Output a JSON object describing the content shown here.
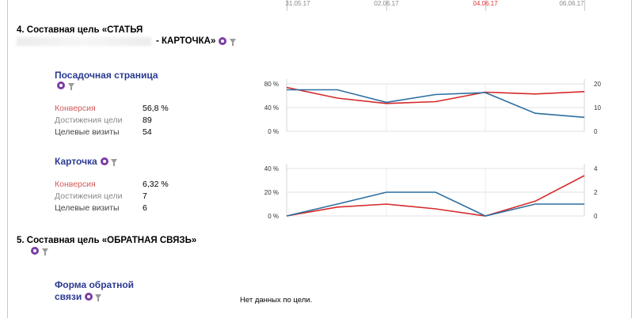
{
  "dates": [
    {
      "label": "31.05.17",
      "red": false
    },
    {
      "label": "02.06.17",
      "red": false
    },
    {
      "label": "04.06.17",
      "red": true
    },
    {
      "label": "06.06.17",
      "red": false
    }
  ],
  "goals": [
    {
      "title_line1": "4. Составная цель «СТАТЬЯ",
      "title_line2": "- КАРТОЧКА»",
      "subgoals": [
        {
          "name": "Посадочная страница",
          "metrics": [
            {
              "label": "Конверсия",
              "value": "56,8 %"
            },
            {
              "label": "Достижения цели",
              "value": "89"
            },
            {
              "label": "Целевые визиты",
              "value": "54"
            }
          ],
          "chart_data": {
            "type": "line",
            "left_ticks": [
              "80 %",
              "40 %",
              "0 %"
            ],
            "right_ticks": [
              "20",
              "10",
              "0"
            ],
            "left_lim": [
              0,
              80
            ],
            "right_lim": [
              0,
              20
            ],
            "series": [
              {
                "color": "#d62a2a",
                "axis": "left",
                "values": [
                  74,
                  56,
                  47,
                  50,
                  66,
                  63,
                  67
                ]
              },
              {
                "color": "#2d6fa0",
                "axis": "right",
                "values": [
                  17.5,
                  17.5,
                  12.2,
                  15.5,
                  16.3,
                  7.6,
                  5.9
                ]
              }
            ]
          }
        },
        {
          "name": "Карточка",
          "metrics": [
            {
              "label": "Конверсия",
              "value": "6,32 %"
            },
            {
              "label": "Достижения цели",
              "value": "7"
            },
            {
              "label": "Целевые визиты",
              "value": "6"
            }
          ],
          "chart_data": {
            "type": "line",
            "left_ticks": [
              "40 %",
              "20 %",
              "0 %"
            ],
            "right_ticks": [
              "4",
              "2",
              "0"
            ],
            "left_lim": [
              0,
              40
            ],
            "right_lim": [
              0,
              4
            ],
            "series": [
              {
                "color": "#d62a2a",
                "axis": "left",
                "values": [
                  0,
                  7.5,
                  10,
                  6,
                  0,
                  12.5,
                  34
                ]
              },
              {
                "color": "#2d6fa0",
                "axis": "right",
                "values": [
                  0,
                  1,
                  2,
                  2,
                  0,
                  1,
                  1
                ]
              }
            ]
          }
        }
      ]
    },
    {
      "title_line1": "5. Составная цель «ОБРАТНАЯ СВЯЗЬ»",
      "subgoals": [
        {
          "name_line1": "Форма обратной",
          "name_line2": "связи",
          "no_data": "Нет данных по цели."
        }
      ]
    }
  ],
  "icons": {
    "goal": "target-circle-icon",
    "filter": "filter-icon"
  }
}
